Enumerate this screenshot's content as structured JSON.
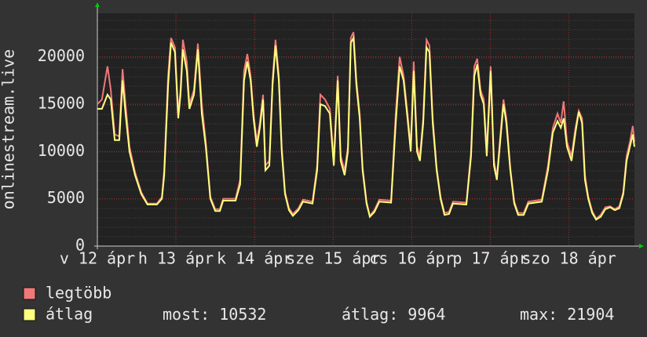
{
  "chart_data": {
    "type": "line",
    "ylabel": "onlinestream.live",
    "xlim": [
      0,
      164
    ],
    "xticks": [
      {
        "value": 0,
        "label": "v 12 ápr"
      },
      {
        "value": 24,
        "label": "h 13 ápr"
      },
      {
        "value": 48,
        "label": "k 14 ápr"
      },
      {
        "value": 72,
        "label": "sze 15 ápr"
      },
      {
        "value": 96,
        "label": "cs 16 ápr"
      },
      {
        "value": 120,
        "label": "p 17 ápr"
      },
      {
        "value": 144,
        "label": "szo 18 ápr"
      }
    ],
    "ylim": [
      0,
      24600
    ],
    "yticks": [
      0,
      5000,
      10000,
      15000,
      20000
    ],
    "grid": true,
    "x": [
      0,
      1.4,
      3.1,
      4.1,
      5.3,
      6.7,
      7.7,
      8.6,
      9.8,
      11.5,
      13.4,
      15.3,
      18.2,
      19.7,
      20.4,
      21.6,
      22.5,
      23.7,
      24.7,
      25.4,
      26.1,
      27.3,
      28.1,
      29.5,
      30.7,
      31.9,
      33.1,
      34.5,
      36.0,
      37.4,
      38.4,
      42.2,
      43.6,
      44.8,
      45.8,
      46.8,
      47.7,
      48.7,
      49.6,
      50.6,
      51.3,
      52.5,
      53.5,
      54.4,
      55.4,
      56.3,
      57.3,
      58.5,
      59.7,
      61.4,
      62.8,
      65.7,
      67.1,
      68.1,
      69.5,
      71.0,
      72.2,
      73.4,
      74.3,
      75.5,
      76.5,
      77.4,
      78.2,
      79.1,
      80.1,
      81.0,
      82.2,
      83.2,
      84.6,
      86.1,
      89.7,
      91.1,
      92.3,
      93.5,
      94.7,
      95.7,
      96.6,
      97.6,
      98.5,
      99.5,
      100.5,
      101.4,
      102.4,
      103.6,
      104.8,
      106.0,
      107.4,
      108.6,
      112.7,
      114.1,
      115.1,
      116.0,
      117.0,
      118.0,
      118.9,
      120.1,
      121.1,
      122.0,
      123.0,
      124.0,
      124.9,
      126.1,
      127.3,
      128.5,
      130.2,
      131.6,
      135.7,
      137.6,
      139.1,
      140.5,
      141.5,
      142.4,
      143.4,
      144.8,
      146.0,
      147.0,
      148.0,
      148.9,
      149.9,
      151.1,
      152.3,
      153.7,
      155.1,
      156.6,
      158.0,
      159.4,
      160.6,
      161.6,
      162.6,
      163.5,
      164
    ],
    "series": [
      {
        "name": "legtöbb",
        "color": "#f07878",
        "values": [
          15000,
          15500,
          19000,
          16500,
          11800,
          11600,
          18700,
          15000,
          10500,
          7800,
          5700,
          4500,
          4500,
          5200,
          8000,
          18000,
          22000,
          21000,
          14000,
          16500,
          21800,
          19500,
          15000,
          16500,
          21400,
          15000,
          11000,
          5200,
          3900,
          3900,
          5000,
          5000,
          7000,
          18500,
          20300,
          18000,
          14000,
          11000,
          13000,
          16000,
          8500,
          9000,
          17500,
          21800,
          18000,
          10500,
          5700,
          4000,
          3400,
          4000,
          4900,
          4700,
          8500,
          16000,
          15500,
          14500,
          9000,
          18000,
          9500,
          8000,
          10500,
          22000,
          22600,
          17500,
          14000,
          8300,
          4700,
          3200,
          3800,
          4900,
          4800,
          14000,
          20000,
          18000,
          14000,
          10500,
          19500,
          10500,
          9500,
          13500,
          21800,
          21200,
          13500,
          8300,
          5200,
          3500,
          3600,
          4700,
          4600,
          10000,
          19000,
          19800,
          16500,
          15500,
          10000,
          19000,
          9000,
          7300,
          11500,
          15500,
          13500,
          8300,
          4700,
          3500,
          3500,
          4700,
          4900,
          8500,
          12500,
          14000,
          13000,
          15300,
          11000,
          9500,
          12500,
          14300,
          13500,
          7500,
          5200,
          3700,
          2900,
          3300,
          4100,
          4200,
          3900,
          4200,
          5700,
          9500,
          11000,
          12700,
          11000
        ]
      },
      {
        "name": "átlag",
        "color": "#ffff80",
        "values": [
          14500,
          14500,
          16000,
          15500,
          11200,
          11200,
          17500,
          14000,
          10000,
          7500,
          5500,
          4400,
          4400,
          5000,
          7500,
          17000,
          21500,
          20500,
          13500,
          16000,
          20800,
          18500,
          14500,
          16000,
          20800,
          14000,
          10500,
          5000,
          3700,
          3700,
          4800,
          4800,
          6500,
          17500,
          19500,
          17500,
          13500,
          10500,
          12500,
          15500,
          8000,
          8500,
          17000,
          21200,
          17500,
          10000,
          5500,
          3800,
          3200,
          3800,
          4700,
          4500,
          8000,
          15000,
          14800,
          14000,
          8500,
          17500,
          9000,
          7500,
          10000,
          21500,
          22000,
          17000,
          13500,
          8000,
          4500,
          3100,
          3600,
          4700,
          4600,
          13000,
          19000,
          17500,
          13500,
          10000,
          18500,
          10000,
          9000,
          13000,
          21000,
          20500,
          13000,
          8000,
          5000,
          3300,
          3400,
          4500,
          4400,
          9500,
          18000,
          19200,
          16000,
          15000,
          9500,
          18500,
          8500,
          7000,
          11000,
          15000,
          13000,
          8000,
          4500,
          3300,
          3300,
          4500,
          4700,
          8000,
          12000,
          13200,
          12500,
          13500,
          10500,
          9000,
          12000,
          14200,
          13000,
          7000,
          5000,
          3500,
          2800,
          3100,
          3900,
          4100,
          3800,
          4000,
          5500,
          9000,
          10500,
          11800,
          10500
        ]
      }
    ],
    "stats": [
      {
        "label": "most:",
        "value": 10532
      },
      {
        "label": "átlag:",
        "value": 9964
      },
      {
        "label": "max:",
        "value": 21904
      }
    ]
  }
}
